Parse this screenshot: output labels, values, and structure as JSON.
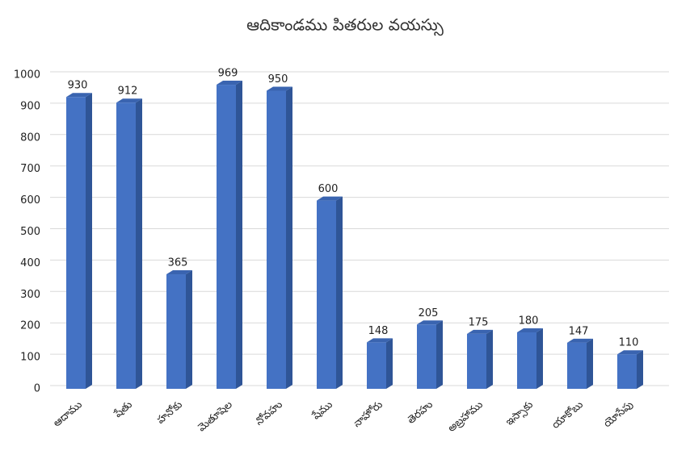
{
  "chart_data": {
    "type": "bar3d",
    "title": "ఆదికాండము పితరుల వయస్సు",
    "categories": [
      "ఆదాము",
      "షేతు",
      "హనోకు",
      "మెతూషెల",
      "నోవహు",
      "షేము",
      "నాహోరు",
      "తెరహు",
      "అబ్రహాము",
      "ఇస్సాకు",
      "యాకోబు",
      "యోసేపు"
    ],
    "values": [
      930,
      912,
      365,
      969,
      950,
      600,
      148,
      205,
      175,
      180,
      147,
      110
    ],
    "color": "#4472c4",
    "ylim": [
      0,
      1000
    ],
    "yticks": [
      0,
      100,
      200,
      300,
      400,
      500,
      600,
      700,
      800,
      900,
      1000
    ],
    "grid": true
  }
}
